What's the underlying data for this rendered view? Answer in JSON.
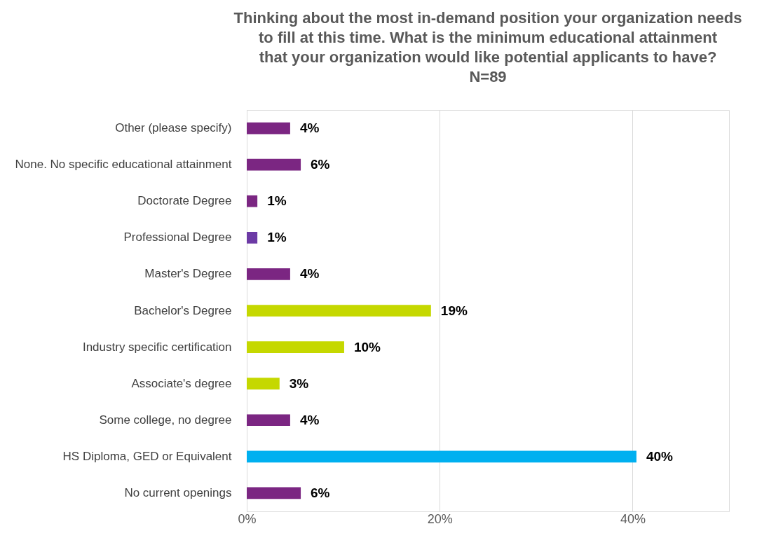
{
  "chart_data": {
    "type": "bar",
    "orientation": "horizontal",
    "title": "Thinking about the most in-demand position your organization needs to fill at this time. What is the minimum educational attainment that your organization would like potential applicants to have? N=89",
    "categories": [
      "Other (please specify)",
      "None. No specific educational attainment",
      "Doctorate Degree",
      "Professional Degree",
      "Master's Degree",
      "Bachelor's Degree",
      "Industry specific certification",
      "Associate's degree",
      "Some college, no degree",
      "HS Diploma, GED or Equivalent",
      "No current openings"
    ],
    "values": [
      4.5,
      5.6,
      1.1,
      1.1,
      4.5,
      19.1,
      10.1,
      3.4,
      4.5,
      40.4,
      5.6
    ],
    "colors": [
      "#7b2682",
      "#7b2682",
      "#7b2682",
      "#6c3aa5",
      "#7b2682",
      "#c5d800",
      "#c5d800",
      "#c5d800",
      "#7b2682",
      "#00b0f0",
      "#7b2682"
    ],
    "value_labels": [
      "4%",
      "6%",
      "1%",
      "1%",
      "4%",
      "19%",
      "10%",
      "3%",
      "4%",
      "40%",
      "6%"
    ],
    "xlim": [
      0,
      50
    ],
    "xticks": [
      {
        "value": 0,
        "label": "0%"
      },
      {
        "value": 20,
        "label": "20%"
      },
      {
        "value": 40,
        "label": "40%"
      }
    ],
    "grid": "x"
  }
}
